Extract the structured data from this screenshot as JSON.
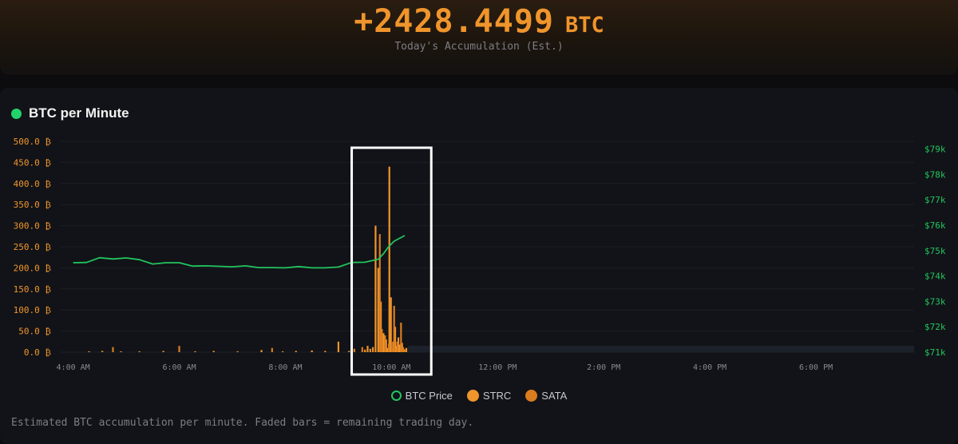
{
  "hero": {
    "value": "+2428.4499",
    "unit": "BTC",
    "subtitle": "Today's Accumulation (Est.)"
  },
  "panel": {
    "title": "BTC per Minute",
    "caption": "Estimated BTC accumulation per minute. Faded bars = remaining trading day."
  },
  "colors": {
    "accent": "#f0952c",
    "price_line": "#22c55e",
    "strc": "#f0952c",
    "sata": "#d97d1e",
    "highlight_box": "#ffffff",
    "right_axis": "#22c55e",
    "left_axis": "#f0952c"
  },
  "chart_data": {
    "type": "bar",
    "title": "BTC per Minute",
    "x_axis": {
      "ticks": [
        "4:00 AM",
        "6:00 AM",
        "8:00 AM",
        "10:00 AM",
        "12:00 PM",
        "2:00 PM",
        "4:00 PM",
        "6:00 PM"
      ],
      "range_hours": [
        3.75,
        19.85
      ]
    },
    "y_left": {
      "ticks": [
        "500.0 ₿",
        "450.0 ₿",
        "400.0 ₿",
        "350.0 ₿",
        "300.0 ₿",
        "250.0 ₿",
        "200.0 ₿",
        "150.0 ₿",
        "100.0 ₿",
        "50.0 ₿",
        "0.0 ₿"
      ],
      "range": [
        0,
        500
      ]
    },
    "y_right": {
      "ticks": [
        "$79k",
        "$78k",
        "$77k",
        "$76k",
        "$75k",
        "$74k",
        "$73k",
        "$72k",
        "$71k"
      ],
      "range": [
        71000,
        79300
      ]
    },
    "legend": [
      {
        "name": "BTC Price",
        "style": "ring"
      },
      {
        "name": "STRC",
        "style": "fill"
      },
      {
        "name": "SATA",
        "style": "fill"
      }
    ],
    "grid": true,
    "highlight_range_hours": [
      9.25,
      10.75
    ],
    "series": [
      {
        "name": "BTC Price",
        "type": "line",
        "x_hours": [
          4.0,
          4.25,
          4.5,
          4.75,
          5.0,
          5.25,
          5.5,
          5.75,
          6.0,
          6.25,
          6.5,
          6.75,
          7.0,
          7.25,
          7.5,
          7.75,
          8.0,
          8.25,
          8.5,
          8.75,
          9.0,
          9.25,
          9.5,
          9.75,
          9.85,
          9.95,
          10.05,
          10.15,
          10.25
        ],
        "y": [
          74520,
          74530,
          74720,
          74670,
          74710,
          74640,
          74470,
          74520,
          74520,
          74390,
          74400,
          74380,
          74360,
          74400,
          74330,
          74330,
          74320,
          74370,
          74320,
          74320,
          74350,
          74530,
          74540,
          74660,
          74880,
          75160,
          75370,
          75480,
          75590
        ]
      },
      {
        "name": "STRC",
        "type": "bar",
        "x_hours": [
          4.3,
          4.55,
          4.9,
          5.25,
          5.7,
          6.3,
          6.65,
          7.1,
          7.55,
          7.95,
          8.2,
          8.5,
          8.75,
          9.0,
          9.2,
          9.5,
          9.55,
          9.6,
          9.65,
          9.7,
          9.75,
          9.8,
          9.85,
          9.9,
          9.93,
          9.96,
          9.99,
          10.03,
          10.07,
          10.1,
          10.13,
          10.16,
          10.2,
          10.24,
          10.28
        ],
        "values": [
          2,
          3,
          2,
          2,
          3,
          2,
          3,
          2,
          5,
          2,
          3,
          4,
          3,
          25,
          3,
          6,
          15,
          8,
          12,
          300,
          200,
          120,
          45,
          30,
          10,
          440,
          130,
          25,
          60,
          15,
          35,
          18,
          22,
          7,
          10
        ]
      },
      {
        "name": "SATA",
        "type": "bar",
        "x_hours": [
          4.75,
          6.0,
          7.75,
          9.3,
          9.45,
          9.78,
          9.82,
          9.88,
          9.95,
          10.01,
          10.05,
          10.11,
          10.18,
          10.22,
          10.26
        ],
        "values": [
          12,
          15,
          10,
          8,
          12,
          280,
          55,
          40,
          20,
          10,
          110,
          25,
          70,
          12,
          5
        ]
      }
    ]
  }
}
